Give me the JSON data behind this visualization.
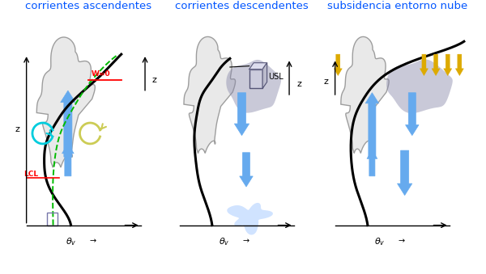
{
  "title1": "corrientes ascendentes",
  "title2": "corrientes descendentes",
  "title3": "subsidencia entorno nube",
  "title_color": "#0055ff",
  "title_fontsize": 9.5,
  "bg_color": "#ffffff",
  "cloud_face": "#e8e8e8",
  "cloud_edge": "#999999",
  "shadow_face": "#8888aa",
  "shadow_alpha": 0.45,
  "arrow_blue": "#66aaee",
  "arrow_gold": "#ddaa00",
  "lcl_color": "#ff0000",
  "w0_color": "#ff0000",
  "green_dash": "#00bb00",
  "blue_box_edge": "#7777aa",
  "blob_color": "#aaccff",
  "profile_lw": 2.2,
  "arrow_lw": 2.5
}
